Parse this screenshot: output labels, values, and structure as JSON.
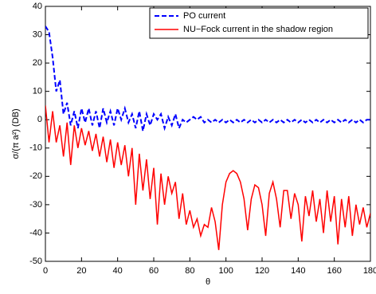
{
  "chart_data": {
    "type": "line",
    "xlabel": "θ",
    "ylabel": "σ/(π a²) (DB)",
    "x": [
      0,
      2,
      4,
      6,
      8,
      10,
      12,
      14,
      16,
      18,
      20,
      22,
      24,
      26,
      28,
      30,
      32,
      34,
      36,
      38,
      40,
      42,
      44,
      46,
      48,
      50,
      52,
      54,
      56,
      58,
      60,
      62,
      64,
      66,
      68,
      70,
      72,
      74,
      76,
      78,
      80,
      82,
      84,
      86,
      88,
      90,
      92,
      94,
      96,
      98,
      100,
      102,
      104,
      106,
      108,
      110,
      112,
      114,
      116,
      118,
      120,
      122,
      124,
      126,
      128,
      130,
      132,
      134,
      136,
      138,
      140,
      142,
      144,
      146,
      148,
      150,
      152,
      154,
      156,
      158,
      160,
      162,
      164,
      166,
      168,
      170,
      172,
      174,
      176,
      178,
      180
    ],
    "series": [
      {
        "name": "PO current",
        "color": "#0000ff",
        "dash": true,
        "values": [
          33,
          31,
          22,
          10,
          14,
          2,
          6,
          -2,
          3,
          -3,
          4,
          -1,
          4,
          -2,
          3,
          -3,
          4,
          -1,
          3,
          -2,
          4,
          0,
          4,
          -1,
          2,
          -3,
          3,
          -4,
          2,
          -2,
          2,
          0,
          2,
          -3,
          1,
          -2,
          2,
          -3,
          0,
          -1,
          0,
          1,
          0,
          1,
          -1,
          0,
          -1,
          0,
          -1,
          0,
          -1,
          0,
          -1,
          0,
          -1,
          0,
          -1,
          0,
          -1,
          0,
          -1,
          0,
          -1,
          0,
          -1,
          0,
          -1,
          0,
          -1,
          0,
          -1,
          0,
          -1,
          0,
          -1,
          0,
          -1,
          0,
          -1,
          0,
          -1,
          0,
          -1,
          0,
          -1,
          0,
          -1,
          0,
          -1,
          0,
          0
        ]
      },
      {
        "name": "NU−Fock current in the shadow region",
        "color": "#ff0000",
        "dash": false,
        "values": [
          5,
          -8,
          3,
          -8,
          -2,
          -13,
          -1,
          -16,
          -2,
          -10,
          -3,
          -9,
          -4,
          -11,
          -5,
          -13,
          -6,
          -15,
          -7,
          -17,
          -8,
          -16,
          -9,
          -20,
          -10,
          -30,
          -12,
          -25,
          -14,
          -28,
          -17,
          -37,
          -19,
          -30,
          -20,
          -26,
          -22,
          -35,
          -26,
          -37,
          -32,
          -38,
          -35,
          -41,
          -37,
          -38,
          -31,
          -36,
          -46,
          -30,
          -22,
          -19,
          -18,
          -19,
          -22,
          -28,
          -39,
          -28,
          -23,
          -24,
          -30,
          -41,
          -26,
          -22,
          -28,
          -38,
          -25,
          -25,
          -35,
          -26,
          -30,
          -43,
          -27,
          -34,
          -25,
          -36,
          -28,
          -40,
          -25,
          -36,
          -27,
          -44,
          -28,
          -38,
          -27,
          -41,
          -30,
          -37,
          -31,
          -38,
          -33
        ]
      }
    ],
    "xlim": [
      0,
      180
    ],
    "ylim": [
      -50,
      40
    ],
    "xticks": [
      0,
      20,
      40,
      60,
      80,
      100,
      120,
      140,
      160,
      180
    ],
    "yticks": [
      -50,
      -40,
      -30,
      -20,
      -10,
      0,
      10,
      20,
      30,
      40
    ],
    "grid": false,
    "legend": "upper right"
  }
}
